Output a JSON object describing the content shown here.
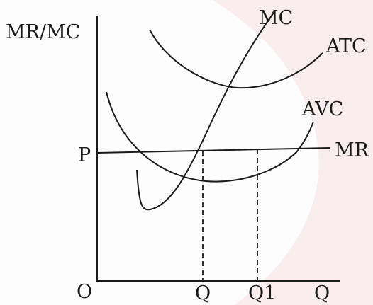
{
  "labels": {
    "y_axis": "MR/MC",
    "origin": "O",
    "price": "P",
    "x_axis": "Q",
    "q_point": "Q",
    "q1_point": "Q1",
    "mc": "MC",
    "atc": "ATC",
    "avc": "AVC",
    "mr": "MR"
  },
  "colors": {
    "ink": "#1a1a1a",
    "watermark": "#f7d9dc"
  }
}
